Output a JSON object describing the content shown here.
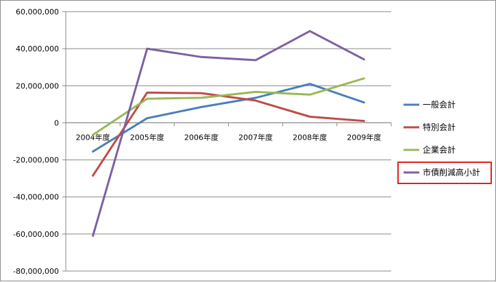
{
  "chart_data": {
    "type": "line",
    "categories": [
      "2004年度",
      "2005年度",
      "2006年度",
      "2007年度",
      "2008年度",
      "2009年度"
    ],
    "series": [
      {
        "name": "一般会計",
        "color": "#4a7ebb",
        "values": [
          -15500000,
          2500000,
          8500000,
          13500000,
          21000000,
          11000000
        ]
      },
      {
        "name": "特別会計",
        "color": "#be4b48",
        "values": [
          -28500000,
          16300000,
          16000000,
          12000000,
          3300000,
          1000000
        ]
      },
      {
        "name": "企業会計",
        "color": "#98b954",
        "values": [
          -6500000,
          13000000,
          13500000,
          16700000,
          15200000,
          24000000
        ]
      },
      {
        "name": "市債削減高小計",
        "color": "#7d60a0",
        "values": [
          -61000000,
          40000000,
          35500000,
          33800000,
          49500000,
          34200000
        ]
      }
    ],
    "ylim": [
      -80000000,
      60000000
    ],
    "yticks": [
      60000000,
      40000000,
      20000000,
      0,
      -20000000,
      -40000000,
      -60000000,
      -80000000
    ],
    "ytick_labels": [
      "60,000,000",
      "40,000,000",
      "20,000,000",
      "0",
      "-20,000,000",
      "-40,000,000",
      "-60,000,000",
      "-80,000,000"
    ],
    "grid": true,
    "legend_position": "right",
    "highlighted_legend_entry": "市債削減高小計",
    "highlight_color": "#e02020",
    "title": "",
    "xlabel": "",
    "ylabel": ""
  }
}
